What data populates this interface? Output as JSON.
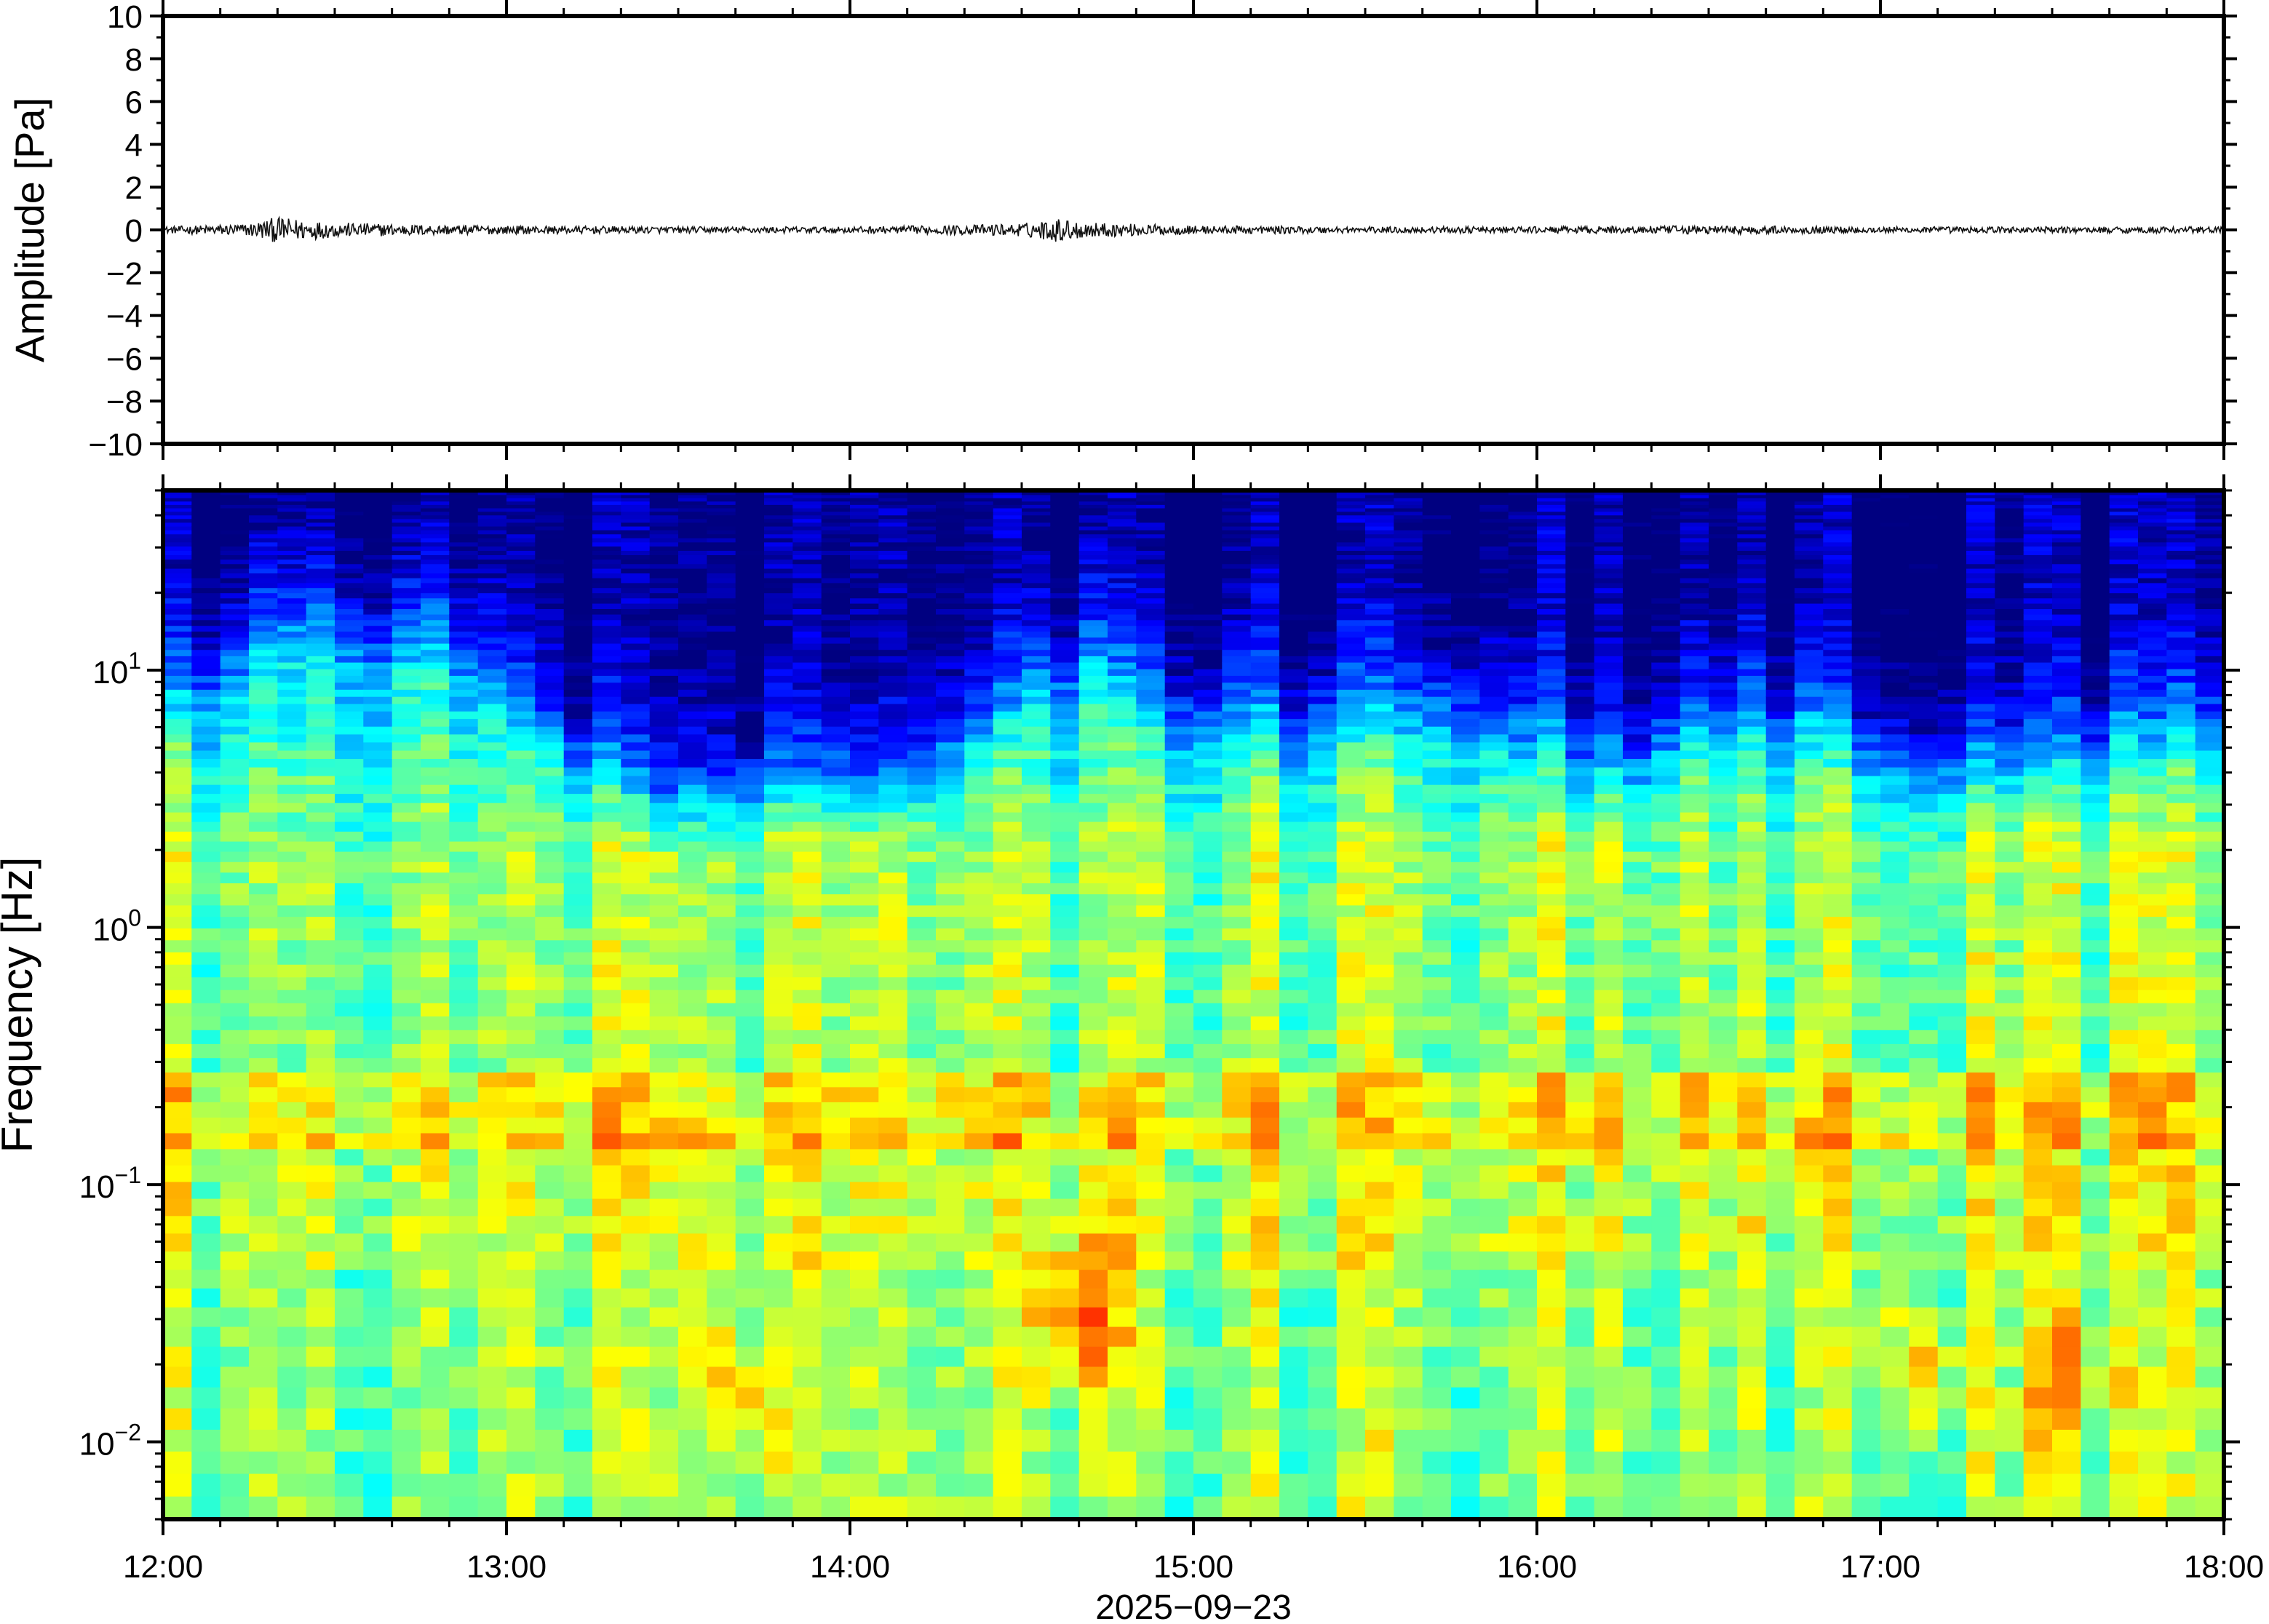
{
  "chart_data": [
    {
      "type": "line",
      "panel": "waveform",
      "ylabel": "Amplitude [Pa]",
      "ylim": [
        -10,
        10
      ],
      "yticks": [
        10,
        8,
        6,
        4,
        2,
        0,
        -2,
        -4,
        -6,
        -8,
        -10
      ],
      "ytick_labels": [
        "10",
        "8",
        "6",
        "4",
        "2",
        "0",
        "−2",
        "−4",
        "−6",
        "−8",
        "−10"
      ],
      "xlim": [
        "12:00",
        "18:00"
      ],
      "series": [
        {
          "x_hours": [
            12.0,
            12.25,
            12.33,
            12.5,
            12.75,
            13.0,
            13.5,
            14.0,
            14.25,
            14.5,
            14.6,
            14.65,
            14.7,
            14.8,
            15.0,
            15.5,
            16.0,
            16.5,
            17.0,
            17.5,
            18.0
          ],
          "y_envelope_pa": [
            0.15,
            0.3,
            0.6,
            0.35,
            0.25,
            0.2,
            0.15,
            0.15,
            0.2,
            0.3,
            0.55,
            0.45,
            0.35,
            0.3,
            0.2,
            0.15,
            0.15,
            0.2,
            0.15,
            0.15,
            0.15
          ]
        }
      ]
    },
    {
      "type": "heatmap",
      "panel": "spectrogram",
      "ylabel": "Frequency [Hz]",
      "yscale": "log",
      "ylim_hz": [
        0.005,
        50
      ],
      "yticks": [
        {
          "base": "10",
          "exp": "1"
        },
        {
          "base": "10",
          "exp": "0"
        },
        {
          "base": "10",
          "exp": "−1"
        },
        {
          "base": "10",
          "exp": "−2"
        }
      ],
      "xlabel": "2025−09−23",
      "xtick_labels": [
        "12:00",
        "13:00",
        "14:00",
        "15:00",
        "16:00",
        "17:00",
        "18:00"
      ],
      "colormap": "jet",
      "background_color": "#0b0a78",
      "upper_energy_limit_hz": [
        [
          12.0,
          10
        ],
        [
          12.17,
          15
        ],
        [
          12.33,
          25
        ],
        [
          12.5,
          22
        ],
        [
          12.67,
          20
        ],
        [
          12.83,
          20
        ],
        [
          13.0,
          12
        ],
        [
          13.25,
          6
        ],
        [
          13.5,
          4
        ],
        [
          13.75,
          5
        ],
        [
          14.0,
          5
        ],
        [
          14.25,
          6
        ],
        [
          14.5,
          12
        ],
        [
          14.67,
          18
        ],
        [
          14.83,
          14
        ],
        [
          15.0,
          10
        ],
        [
          15.25,
          9
        ],
        [
          15.5,
          11
        ],
        [
          15.75,
          11
        ],
        [
          16.0,
          8
        ],
        [
          16.25,
          6
        ],
        [
          16.5,
          10
        ],
        [
          16.75,
          10
        ],
        [
          17.0,
          6
        ],
        [
          17.25,
          6
        ],
        [
          17.5,
          7
        ],
        [
          17.75,
          8
        ],
        [
          18.0,
          9
        ]
      ],
      "energy_peaks": [
        {
          "time_hours": 14.67,
          "freq_hz": 0.03,
          "level": "orange-red"
        },
        {
          "time_hours": 13.67,
          "freq_hz": 0.015,
          "level": "orange"
        },
        {
          "time_hours": 17.1,
          "freq_hz": 0.02,
          "level": "orange"
        },
        {
          "time_hours": 17.55,
          "freq_hz": 0.018,
          "level": "orange"
        }
      ],
      "microseism_band_hz": [
        0.15,
        0.25
      ]
    }
  ]
}
